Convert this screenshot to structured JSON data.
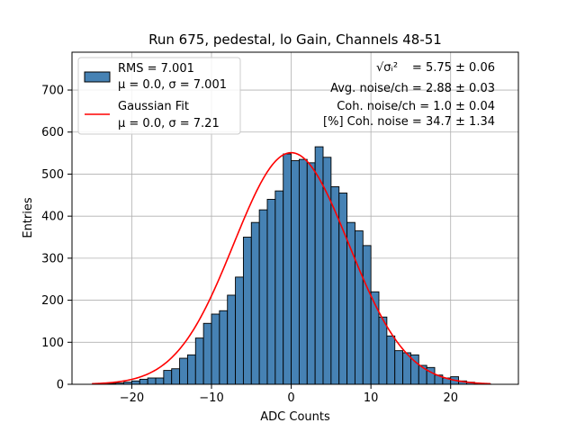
{
  "chart_data": {
    "type": "bar",
    "title": "Run 675, pedestal, lo Gain, Channels 48-51",
    "xlabel": "ADC Counts",
    "ylabel": "Entries",
    "xlim": [
      -27.5,
      28.5
    ],
    "ylim": [
      0,
      790
    ],
    "xticks": [
      -20,
      -10,
      0,
      10,
      20
    ],
    "yticks": [
      0,
      100,
      200,
      300,
      400,
      500,
      600,
      700
    ],
    "grid": true,
    "bar_color": "#4682b4",
    "fit_color": "#ff0000",
    "bin_edges": [
      -25,
      -24,
      -23,
      -22,
      -21,
      -20,
      -19,
      -18,
      -17,
      -16,
      -15,
      -14,
      -13,
      -12,
      -11,
      -10,
      -9,
      -8,
      -7,
      -6,
      -5,
      -4,
      -3,
      -2,
      -1,
      0,
      1,
      2,
      3,
      4,
      5,
      6,
      7,
      8,
      9,
      10,
      11,
      12,
      13,
      14,
      15,
      16,
      17,
      18,
      19,
      20,
      21,
      22,
      23,
      24,
      25
    ],
    "counts": [
      0,
      1,
      2,
      3,
      5,
      8,
      12,
      15,
      15,
      33,
      37,
      62,
      70,
      110,
      145,
      167,
      175,
      212,
      255,
      350,
      385,
      415,
      440,
      460,
      548,
      532,
      535,
      527,
      565,
      540,
      470,
      455,
      385,
      365,
      330,
      220,
      160,
      115,
      80,
      75,
      70,
      45,
      40,
      22,
      15,
      18,
      8,
      5,
      2,
      1
    ],
    "series": [
      {
        "name": "RMS = 7.001",
        "sublabel": "μ = 0.0, σ = 7.001",
        "kind": "histogram"
      },
      {
        "name": "Gaussian Fit",
        "sublabel": "μ = 0.0, σ = 7.21",
        "kind": "line",
        "mu": 0.0,
        "sigma": 7.21,
        "amplitude": 551
      }
    ],
    "legend_position": "top-left",
    "annotations": [
      {
        "prefix": "√σᵢ²",
        "text": "= 5.75 ± 0.06"
      },
      {
        "text": "Avg. noise/ch = 2.88 ± 0.03"
      },
      {
        "text": "Coh. noise/ch = 1.0 ± 0.04"
      },
      {
        "text": "[%] Coh. noise = 34.7 ± 1.34"
      }
    ]
  }
}
